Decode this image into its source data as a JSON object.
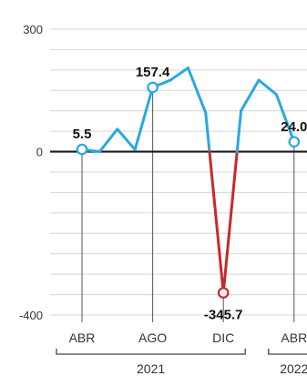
{
  "chart_data": {
    "type": "line",
    "ylim": [
      -400,
      300
    ],
    "yticks": [
      300,
      0,
      -400
    ],
    "grid": true,
    "x": [
      "ABR 2021",
      "",
      "",
      "",
      "AGO 2021",
      "",
      "",
      "",
      "DIC 2021",
      "",
      "",
      "",
      "ABR 2022"
    ],
    "values": [
      5.5,
      0,
      55,
      5,
      157.4,
      175,
      205,
      95,
      -345.7,
      100,
      175,
      140,
      24.0
    ],
    "series": [
      {
        "color": "#2aa8df"
      }
    ],
    "negative_color": "#c8282e",
    "highlights": [
      {
        "index": 0,
        "label": "5.5"
      },
      {
        "index": 4,
        "label": "157.4"
      },
      {
        "index": 8,
        "label": "-345.7"
      },
      {
        "index": 12,
        "label": "24.0"
      }
    ],
    "month_labels": [
      {
        "index": 0,
        "text": "ABR"
      },
      {
        "index": 4,
        "text": "AGO"
      },
      {
        "index": 8,
        "text": "DIC"
      },
      {
        "index": 12,
        "text": "ABR"
      }
    ],
    "year_groups": [
      {
        "from": 0,
        "to": 8,
        "text": "2021"
      },
      {
        "from": 12,
        "to": 14,
        "text": "2022"
      }
    ]
  }
}
